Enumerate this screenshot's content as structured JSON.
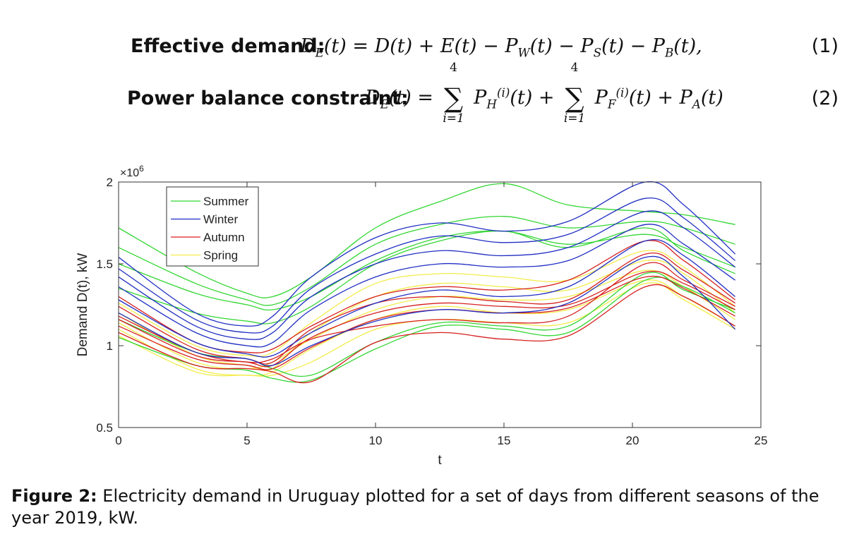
{
  "equations": [
    {
      "label": "Effective demand:",
      "number": "(1)"
    },
    {
      "label": "Power balance constraint:",
      "number": "(2)"
    }
  ],
  "caption": {
    "prefix": "Figure 2:",
    "text": "Electricity demand in Uruguay plotted for a set of days from different seasons of the year 2019, kW."
  },
  "chart_data": {
    "type": "line",
    "xlabel": "t",
    "ylabel": "Demand D(t), kW",
    "y_multiplier": "×10^6",
    "xlim": [
      0,
      25
    ],
    "ylim": [
      0.5,
      2
    ],
    "xticks": [
      0,
      5,
      10,
      15,
      20,
      25
    ],
    "yticks": [
      0.5,
      1,
      1.5,
      2
    ],
    "grid": false,
    "legend": "top-left",
    "colors": {
      "Summer": "#33d633",
      "Winter": "#1f2ec2",
      "Autumn": "#d62020",
      "Spring": "#f2ec4a"
    },
    "x": [
      0,
      3,
      5,
      6,
      7.5,
      10,
      12.5,
      15,
      17.5,
      20.5,
      22,
      24
    ],
    "series": [
      {
        "name": "Summer",
        "values": [
          1.72,
          1.45,
          1.32,
          1.3,
          1.42,
          1.72,
          1.88,
          1.99,
          1.86,
          1.82,
          1.8,
          1.74
        ]
      },
      {
        "name": "Summer",
        "values": [
          1.6,
          1.38,
          1.28,
          1.25,
          1.36,
          1.62,
          1.74,
          1.79,
          1.72,
          1.76,
          1.72,
          1.62
        ]
      },
      {
        "name": "Summer",
        "values": [
          1.5,
          1.32,
          1.25,
          1.22,
          1.3,
          1.52,
          1.66,
          1.7,
          1.62,
          1.68,
          1.6,
          1.48
        ]
      },
      {
        "name": "Summer",
        "values": [
          1.05,
          0.88,
          0.85,
          0.8,
          0.79,
          0.98,
          1.12,
          1.1,
          1.08,
          1.4,
          1.36,
          1.2
        ]
      },
      {
        "name": "Summer",
        "values": [
          1.16,
          0.96,
          0.92,
          0.86,
          0.82,
          1.02,
          1.14,
          1.12,
          1.12,
          1.44,
          1.34,
          1.22
        ]
      },
      {
        "name": "Summer",
        "values": [
          1.35,
          1.2,
          1.15,
          1.14,
          1.24,
          1.5,
          1.64,
          1.7,
          1.6,
          1.72,
          1.58,
          1.44
        ]
      },
      {
        "name": "Winter",
        "values": [
          1.54,
          1.2,
          1.12,
          1.18,
          1.42,
          1.66,
          1.75,
          1.7,
          1.76,
          2.0,
          1.86,
          1.56
        ]
      },
      {
        "name": "Winter",
        "values": [
          1.47,
          1.16,
          1.08,
          1.12,
          1.35,
          1.56,
          1.67,
          1.63,
          1.68,
          1.9,
          1.78,
          1.52
        ]
      },
      {
        "name": "Winter",
        "values": [
          1.42,
          1.12,
          1.04,
          1.08,
          1.3,
          1.5,
          1.58,
          1.55,
          1.6,
          1.82,
          1.72,
          1.48
        ]
      },
      {
        "name": "Winter",
        "values": [
          1.36,
          1.08,
          1.0,
          1.02,
          1.22,
          1.42,
          1.5,
          1.48,
          1.52,
          1.74,
          1.62,
          1.4
        ]
      },
      {
        "name": "Winter",
        "values": [
          1.28,
          1.02,
          0.95,
          0.94,
          1.08,
          1.26,
          1.34,
          1.3,
          1.36,
          1.64,
          1.55,
          1.3
        ]
      },
      {
        "name": "Winter",
        "values": [
          1.2,
          0.96,
          0.92,
          0.88,
          1.0,
          1.15,
          1.22,
          1.2,
          1.26,
          1.54,
          1.42,
          1.1
        ]
      },
      {
        "name": "Autumn",
        "values": [
          1.24,
          0.98,
          0.92,
          0.9,
          1.1,
          1.26,
          1.3,
          1.27,
          1.28,
          1.56,
          1.46,
          1.26
        ]
      },
      {
        "name": "Autumn",
        "values": [
          1.16,
          0.94,
          0.9,
          0.88,
          1.05,
          1.2,
          1.26,
          1.24,
          1.25,
          1.45,
          1.38,
          1.22
        ]
      },
      {
        "name": "Autumn",
        "values": [
          1.12,
          0.92,
          0.88,
          0.86,
          0.99,
          1.16,
          1.22,
          1.2,
          1.23,
          1.42,
          1.35,
          1.18
        ]
      },
      {
        "name": "Autumn",
        "values": [
          1.08,
          0.88,
          0.86,
          0.84,
          0.78,
          1.02,
          1.08,
          1.04,
          1.06,
          1.36,
          1.3,
          1.12
        ]
      },
      {
        "name": "Autumn",
        "values": [
          1.18,
          0.96,
          0.9,
          0.92,
          1.04,
          1.12,
          1.16,
          1.14,
          1.18,
          1.5,
          1.4,
          1.24
        ]
      },
      {
        "name": "Autumn",
        "values": [
          1.3,
          1.02,
          0.96,
          0.98,
          1.12,
          1.3,
          1.36,
          1.34,
          1.4,
          1.64,
          1.52,
          1.28
        ]
      },
      {
        "name": "Spring",
        "values": [
          1.14,
          0.9,
          0.86,
          0.9,
          1.04,
          1.22,
          1.3,
          1.28,
          1.3,
          1.46,
          1.36,
          1.16
        ]
      },
      {
        "name": "Spring",
        "values": [
          1.1,
          0.86,
          0.82,
          0.84,
          0.98,
          1.16,
          1.24,
          1.2,
          1.22,
          1.4,
          1.3,
          1.12
        ]
      },
      {
        "name": "Spring",
        "values": [
          1.2,
          0.94,
          0.88,
          0.86,
          1.08,
          1.3,
          1.38,
          1.36,
          1.34,
          1.52,
          1.44,
          1.2
        ]
      },
      {
        "name": "Spring",
        "values": [
          1.06,
          0.84,
          0.82,
          0.82,
          0.9,
          1.1,
          1.16,
          1.14,
          1.14,
          1.38,
          1.28,
          1.1
        ]
      },
      {
        "name": "Spring",
        "values": [
          1.26,
          1.0,
          0.94,
          0.96,
          1.14,
          1.38,
          1.44,
          1.42,
          1.4,
          1.58,
          1.48,
          1.24
        ]
      }
    ]
  }
}
